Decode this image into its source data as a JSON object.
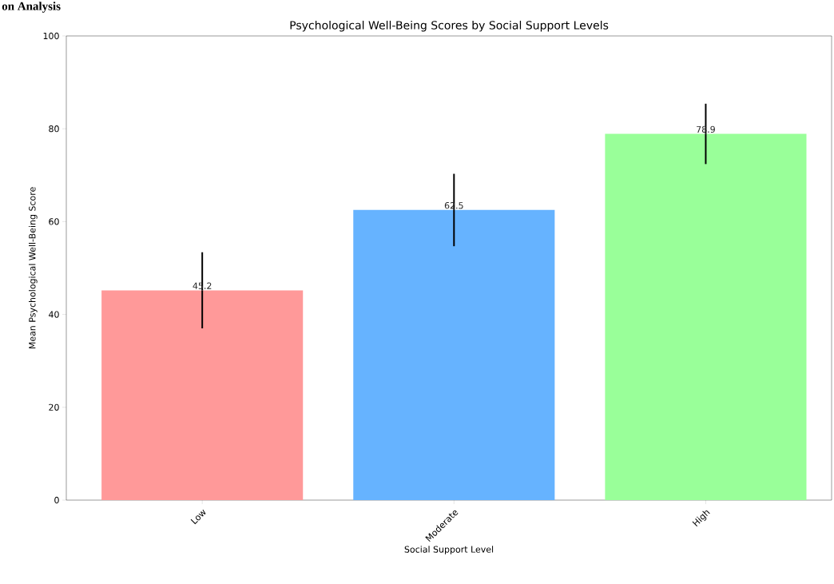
{
  "chart_data": {
    "type": "bar",
    "title": "Psychological Well-Being Scores by Social Support Levels",
    "xlabel": "Social Support Level",
    "ylabel": "Mean Psychological Well-Being Score",
    "annotations": [
      "on Analysis"
    ],
    "categories": [
      "Low",
      "Moderate",
      "High"
    ],
    "values": [
      45.2,
      62.5,
      78.9
    ],
    "colors": [
      "#ff9999",
      "#66b3ff",
      "#99ff99"
    ],
    "errors": [
      8.2,
      7.8,
      6.5
    ],
    "data_labels": true,
    "ylim": [
      0,
      100
    ],
    "yticks": [
      0,
      20,
      40,
      60,
      80,
      100
    ],
    "grid": false
  }
}
